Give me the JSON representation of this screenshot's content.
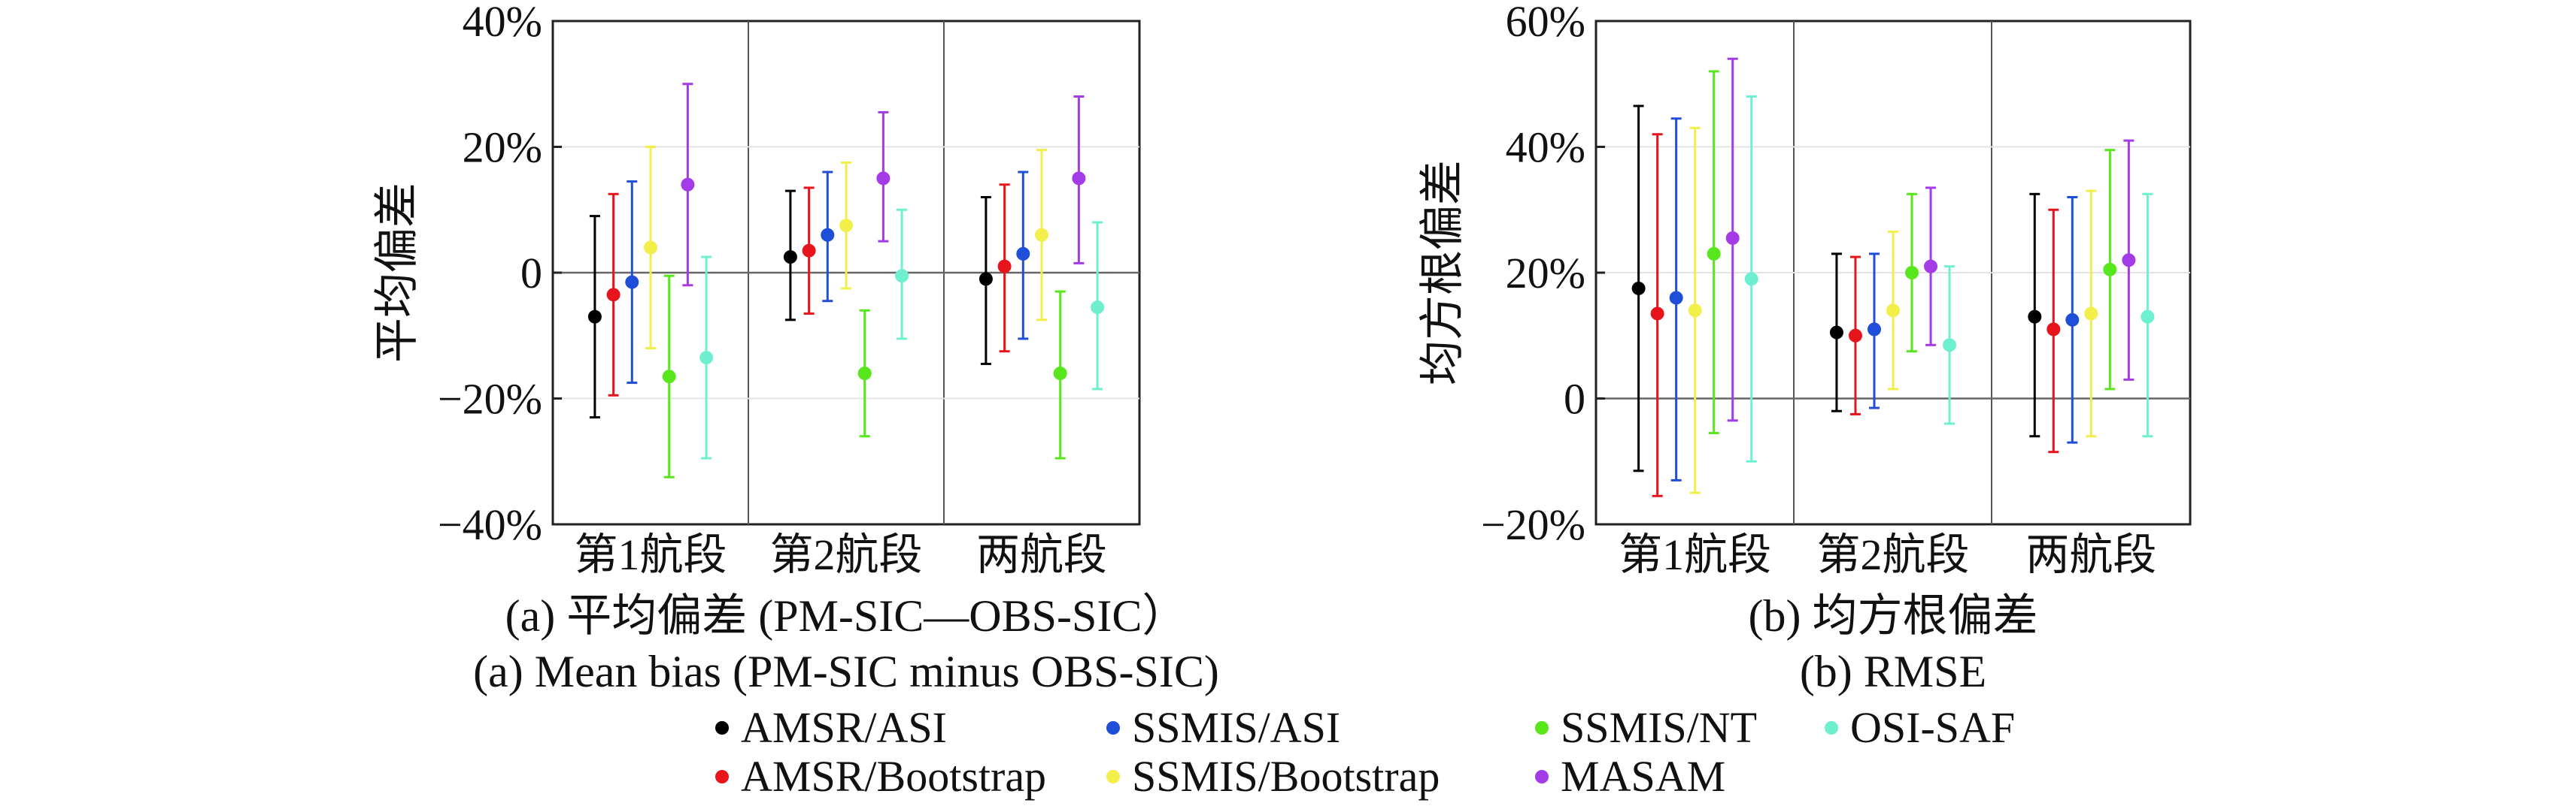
{
  "chart_data": [
    {
      "type": "errorbar",
      "panel": "a",
      "ylabel": "平均偏差",
      "caption_cn": "(a) 平均偏差 (PM-SIC—OBS-SIC）",
      "caption_en": "(a) Mean bias (PM-SIC minus OBS-SIC)",
      "categories": [
        "第1航段",
        "第2航段",
        "两航段"
      ],
      "ylim": [
        -40,
        40
      ],
      "yticks": [
        -40,
        -20,
        0,
        20,
        40
      ],
      "ytick_labels": [
        "−40%",
        "−20%",
        "0",
        "20%",
        "40%"
      ],
      "series": [
        {
          "name": "AMSR/ASI",
          "values": [
            -7,
            2.5,
            -1
          ],
          "lower": [
            -23,
            -7.5,
            -14.5
          ],
          "upper": [
            9,
            13,
            12
          ]
        },
        {
          "name": "AMSR/Bootstrap",
          "values": [
            -3.5,
            3.5,
            1
          ],
          "lower": [
            -19.5,
            -6.5,
            -12.5
          ],
          "upper": [
            12.5,
            13.5,
            14
          ]
        },
        {
          "name": "SSMIS/ASI",
          "values": [
            -1.5,
            6,
            3
          ],
          "lower": [
            -17.5,
            -4.5,
            -10.5
          ],
          "upper": [
            14.5,
            16,
            16
          ]
        },
        {
          "name": "SSMIS/Bootstrap",
          "values": [
            4,
            7.5,
            6
          ],
          "lower": [
            -12,
            -2.5,
            -7.5
          ],
          "upper": [
            20,
            17.5,
            19.5
          ]
        },
        {
          "name": "SSMIS/NT",
          "values": [
            -16.5,
            -16,
            -16
          ],
          "lower": [
            -32.5,
            -26,
            -29.5
          ],
          "upper": [
            -0.5,
            -6,
            -3
          ]
        },
        {
          "name": "MASAM",
          "values": [
            14,
            15,
            15
          ],
          "lower": [
            -2,
            5,
            1.5
          ],
          "upper": [
            30,
            25.5,
            28
          ]
        },
        {
          "name": "OSI-SAF",
          "values": [
            -13.5,
            -0.5,
            -5.5
          ],
          "lower": [
            -29.5,
            -10.5,
            -18.5
          ],
          "upper": [
            2.5,
            10,
            8
          ]
        }
      ]
    },
    {
      "type": "errorbar",
      "panel": "b",
      "ylabel": "均方根偏差",
      "caption_cn": "(b) 均方根偏差",
      "caption_en": "(b) RMSE",
      "categories": [
        "第1航段",
        "第2航段",
        "两航段"
      ],
      "ylim": [
        -20,
        60
      ],
      "yticks": [
        -20,
        0,
        20,
        40,
        60
      ],
      "ytick_labels": [
        "−20%",
        "0",
        "20%",
        "40%",
        "60%"
      ],
      "series": [
        {
          "name": "AMSR/ASI",
          "values": [
            17.5,
            10.5,
            13
          ],
          "lower": [
            -11.5,
            -2,
            -6
          ],
          "upper": [
            46.5,
            23,
            32.5
          ]
        },
        {
          "name": "AMSR/Bootstrap",
          "values": [
            13.5,
            10,
            11
          ],
          "lower": [
            -15.5,
            -2.5,
            -8.5
          ],
          "upper": [
            42,
            22.5,
            30
          ]
        },
        {
          "name": "SSMIS/ASI",
          "values": [
            16,
            11,
            12.5
          ],
          "lower": [
            -13,
            -1.5,
            -7
          ],
          "upper": [
            44.5,
            23,
            32
          ]
        },
        {
          "name": "SSMIS/Bootstrap",
          "values": [
            14,
            14,
            13.5
          ],
          "lower": [
            -15,
            1.5,
            -6
          ],
          "upper": [
            43,
            26.5,
            33
          ]
        },
        {
          "name": "SSMIS/NT",
          "values": [
            23,
            20,
            20.5
          ],
          "lower": [
            -5.5,
            7.5,
            1.5
          ],
          "upper": [
            52,
            32.5,
            39.5
          ]
        },
        {
          "name": "MASAM",
          "values": [
            25.5,
            21,
            22
          ],
          "lower": [
            -3.5,
            8.5,
            3
          ],
          "upper": [
            54,
            33.5,
            41
          ]
        },
        {
          "name": "OSI-SAF",
          "values": [
            19,
            8.5,
            13
          ],
          "lower": [
            -10,
            -4,
            -6
          ],
          "upper": [
            48,
            21,
            32.5
          ]
        }
      ]
    }
  ],
  "series_colors": {
    "AMSR/ASI": "#000000",
    "AMSR/Bootstrap": "#e8141c",
    "SSMIS/ASI": "#1f4fd8",
    "SSMIS/Bootstrap": "#f2ef4a",
    "SSMIS/NT": "#58e61c",
    "MASAM": "#a33be6",
    "OSI-SAF": "#6ef0d0"
  },
  "legend": {
    "row1": [
      "AMSR/ASI",
      "SSMIS/ASI",
      "SSMIS/NT",
      "OSI-SAF"
    ],
    "row2": [
      "AMSR/Bootstrap",
      "SSMIS/Bootstrap",
      "MASAM"
    ]
  }
}
